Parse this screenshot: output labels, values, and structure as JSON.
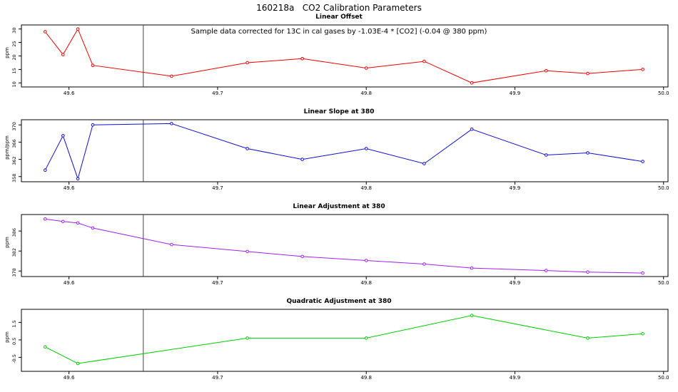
{
  "main_title": "160218a   CO2 Calibration Parameters",
  "marker_x": 49.65,
  "xlim": [
    49.568,
    50.003
  ],
  "xticks": {
    "values": [
      49.6,
      49.7,
      49.8,
      49.9,
      50.0
    ],
    "labels": [
      "49.6",
      "49.7",
      "49.8",
      "49.9",
      "50.0"
    ]
  },
  "chart_data": [
    {
      "type": "line",
      "title": "Linear Offset",
      "ylabel": "ppm",
      "color": "#ee0000",
      "annotation": "Sample data corrected for 13C in cal gases by -1.03E-4 * [CO2] (-0.04 @ 380 ppm)",
      "x": [
        49.584,
        49.596,
        49.606,
        49.616,
        49.669,
        49.72,
        49.757,
        49.8,
        49.839,
        49.871,
        49.921,
        49.949,
        49.986
      ],
      "y": [
        29,
        20.5,
        30,
        16.5,
        12.5,
        17.5,
        19,
        15.5,
        18,
        10,
        14.5,
        13.5,
        15
      ],
      "yticks": [
        10,
        15,
        20,
        25,
        30
      ],
      "ylim": [
        8.5,
        31.5
      ]
    },
    {
      "type": "line",
      "title": "Linear Slope at 380",
      "ylabel": "ppm/ppm",
      "color": "#1010cc",
      "x": [
        49.584,
        49.596,
        49.606,
        49.616,
        49.669,
        49.72,
        49.757,
        49.8,
        49.839,
        49.871,
        49.921,
        49.949,
        49.986
      ],
      "y": [
        359.5,
        367.5,
        357.5,
        370,
        370.3,
        364.5,
        362,
        364.5,
        361,
        369,
        363,
        363.5,
        361.5
      ],
      "yticks": [
        358,
        362,
        366,
        370
      ],
      "ylim": [
        356.8,
        371.2
      ]
    },
    {
      "type": "line",
      "title": "Linear Adjustment at 380",
      "ylabel": "ppm",
      "color": "#a020f0",
      "x": [
        49.584,
        49.596,
        49.606,
        49.616,
        49.669,
        49.72,
        49.757,
        49.8,
        49.839,
        49.871,
        49.921,
        49.949,
        49.986
      ],
      "y": [
        388.4,
        387.9,
        387.6,
        386.6,
        383.3,
        381.9,
        380.9,
        380.1,
        379.4,
        378.6,
        378.1,
        377.8,
        377.6
      ],
      "yticks": [
        378,
        382,
        386
      ],
      "ylim": [
        376.9,
        389.3
      ]
    },
    {
      "type": "line",
      "title": "Quadratic Adjustment at 380",
      "ylabel": "ppm",
      "color": "#00cc00",
      "x": [
        49.584,
        49.606,
        49.72,
        49.8,
        49.871,
        49.949,
        49.986
      ],
      "y": [
        0.1,
        -0.85,
        0.6,
        0.6,
        1.9,
        0.6,
        0.85
      ],
      "yticks": [
        -0.5,
        0.5,
        1.5
      ],
      "ylim": [
        -1.3,
        2.25
      ]
    }
  ]
}
